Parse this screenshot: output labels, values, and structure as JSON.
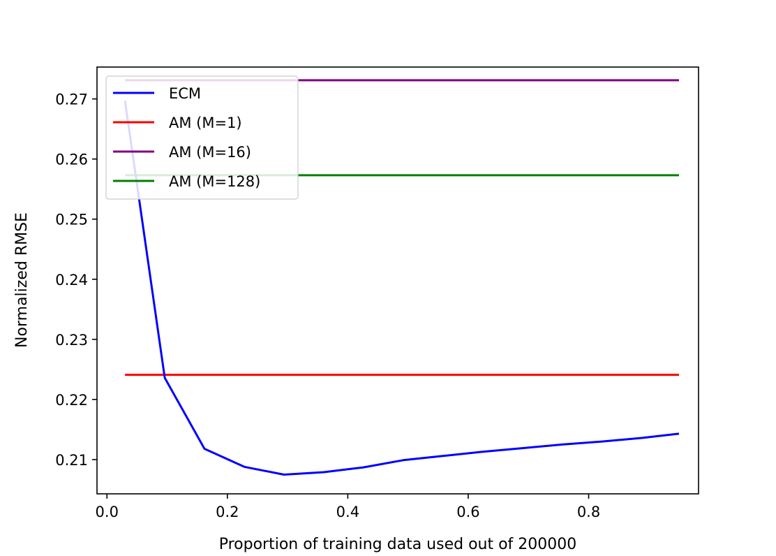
{
  "chart_data": {
    "type": "line",
    "title": "",
    "xlabel": "Proportion of training data used out of 200000",
    "ylabel": "Normalized RMSE",
    "xlim": [
      -0.0165,
      0.9825
    ],
    "ylim": [
      0.2043,
      0.2753
    ],
    "xticks": [
      {
        "value": 0.0,
        "label": "0.0"
      },
      {
        "value": 0.2,
        "label": "0.2"
      },
      {
        "value": 0.4,
        "label": "0.4"
      },
      {
        "value": 0.6,
        "label": "0.6"
      },
      {
        "value": 0.8,
        "label": "0.8"
      }
    ],
    "yticks": [
      {
        "value": 0.21,
        "label": "0.21"
      },
      {
        "value": 0.22,
        "label": "0.22"
      },
      {
        "value": 0.23,
        "label": "0.23"
      },
      {
        "value": 0.24,
        "label": "0.24"
      },
      {
        "value": 0.25,
        "label": "0.25"
      },
      {
        "value": 0.26,
        "label": "0.26"
      },
      {
        "value": 0.27,
        "label": "0.27"
      }
    ],
    "grid": false,
    "legend_position": "top-left",
    "series": [
      {
        "name": "ECM",
        "color": "#0000ff",
        "x": [
          0.03,
          0.096,
          0.162,
          0.228,
          0.294,
          0.36,
          0.426,
          0.492,
          0.558,
          0.624,
          0.69,
          0.756,
          0.822,
          0.888,
          0.95
        ],
        "y": [
          0.2697,
          0.2236,
          0.2118,
          0.2088,
          0.2075,
          0.2079,
          0.2087,
          0.2099,
          0.2106,
          0.2113,
          0.2119,
          0.2125,
          0.213,
          0.2136,
          0.2143
        ]
      },
      {
        "name": "AM (M=1)",
        "color": "#ff0000",
        "x": [
          0.03,
          0.95
        ],
        "y": [
          0.2241,
          0.2241
        ]
      },
      {
        "name": "AM (M=16)",
        "color": "#800080",
        "x": [
          0.03,
          0.95
        ],
        "y": [
          0.2731,
          0.2731
        ]
      },
      {
        "name": "AM (M=128)",
        "color": "#008000",
        "x": [
          0.03,
          0.95
        ],
        "y": [
          0.2573,
          0.2573
        ]
      }
    ]
  }
}
